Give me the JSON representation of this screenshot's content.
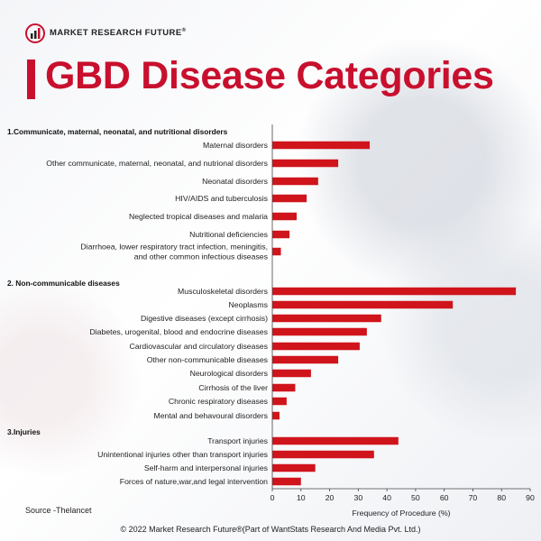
{
  "brand": {
    "name": "MARKET RESEARCH FUTURE",
    "reg": "®"
  },
  "title": "GBD Disease Categories",
  "source": "Source -Thelancet",
  "copyright": "© 2022 Market Research Future®(Part of WantStats Research And Media Pvt. Ltd.)",
  "colors": {
    "accent": "#c8102e",
    "bar": "#d0141b"
  },
  "chart_data": {
    "type": "bar",
    "orientation": "horizontal",
    "xlabel": "Frequency of Procedure (%)",
    "xlim": [
      0,
      90
    ],
    "xticks": [
      0,
      10,
      20,
      30,
      40,
      50,
      60,
      70,
      80,
      90
    ],
    "grid": false,
    "groups": [
      {
        "label": "1.Communicate, maternal, neonatal, and nutritional disorders",
        "items": [
          {
            "label": [
              "Maternal disorders"
            ],
            "value": 34
          },
          {
            "label": [
              "Other communicate, maternal, neonatal, and nutrional disorders"
            ],
            "value": 23
          },
          {
            "label": [
              "Neonatal disorders"
            ],
            "value": 16
          },
          {
            "label": [
              "HIV/AIDS and tuberculosis"
            ],
            "value": 12
          },
          {
            "label": [
              "Neglected tropical diseases and malaria"
            ],
            "value": 8.5
          },
          {
            "label": [
              "Nutritional deficiencies"
            ],
            "value": 6
          },
          {
            "label": [
              "Diarrhoea, lower respiratory tract infection, meningitis,",
              "and other common infectious  diseases"
            ],
            "value": 3
          }
        ]
      },
      {
        "label": "2. Non-communicable diseases",
        "items": [
          {
            "label": [
              "Musculoskeletal disorders"
            ],
            "value": 85
          },
          {
            "label": [
              "Neoplasms"
            ],
            "value": 63
          },
          {
            "label": [
              "Digestive diseases (except cirrhosis)"
            ],
            "value": 38
          },
          {
            "label": [
              "Diabetes, urogenital, blood and endocrine diseases"
            ],
            "value": 33
          },
          {
            "label": [
              "Cardiovascular and circulatory diseases"
            ],
            "value": 30.5
          },
          {
            "label": [
              "Other non-communicable diseases"
            ],
            "value": 23
          },
          {
            "label": [
              "Neurological disorders"
            ],
            "value": 13.5
          },
          {
            "label": [
              "Cirrhosis of the liver"
            ],
            "value": 8
          },
          {
            "label": [
              "Chronic respiratory diseases"
            ],
            "value": 5
          },
          {
            "label": [
              "Mental and behavoural disorders"
            ],
            "value": 2.5
          }
        ]
      },
      {
        "label": "3.Injuries",
        "items": [
          {
            "label": [
              "Transport injuries"
            ],
            "value": 44
          },
          {
            "label": [
              "Unintentional injuries other than transport injuries"
            ],
            "value": 35.5
          },
          {
            "label": [
              "Self-harm and interpersonal injuries"
            ],
            "value": 15
          },
          {
            "label": [
              "Forces of nature,war,and legal intervention"
            ],
            "value": 10
          }
        ]
      }
    ]
  }
}
